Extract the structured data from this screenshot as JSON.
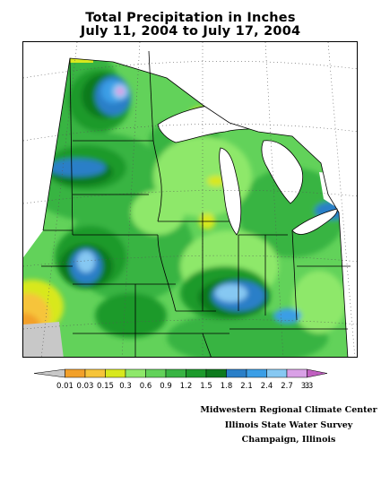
{
  "title": {
    "line1": "Total Precipitation in Inches",
    "line2": "July 11, 2004 to July 17, 2004"
  },
  "legend": {
    "labels": [
      "0.01",
      "0.03",
      "0.15",
      "0.3",
      "0.6",
      "0.9",
      "1.2",
      "1.5",
      "1.8",
      "2.1",
      "2.4",
      "2.7",
      "3",
      "3.3"
    ],
    "colors": [
      "#c8c8c8",
      "#f2a02a",
      "#f6c43a",
      "#d8e81e",
      "#8ee86a",
      "#62d25a",
      "#38b443",
      "#1d9a2c",
      "#0e7a1e",
      "#2a7fc8",
      "#3b9ee6",
      "#86c8f2",
      "#d9a0e6",
      "#c060c0"
    ]
  },
  "credits": {
    "line1": "Midwestern Regional Climate Center",
    "line2": "Illinois State Water Survey",
    "line3": "Champaign, Illinois"
  },
  "map": {
    "colors": {
      "water": "#ffffff",
      "border": "#000000",
      "graticule": "#555555"
    }
  }
}
